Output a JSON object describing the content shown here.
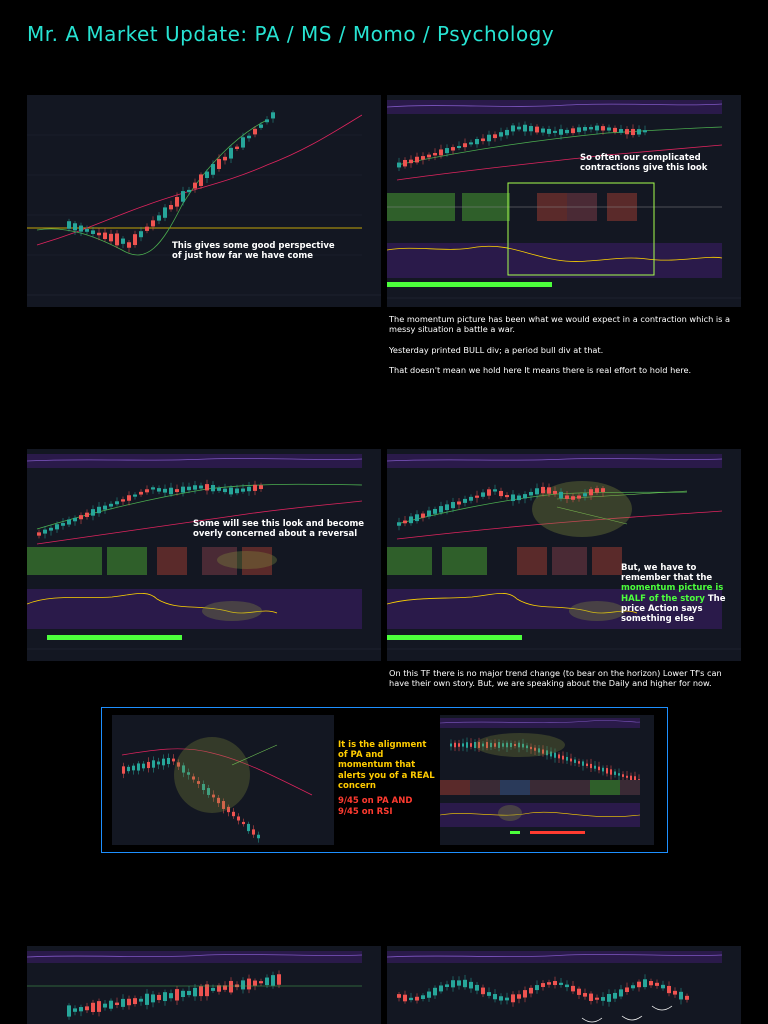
{
  "header": {
    "title": "Mr. A Market Update: PA / MS / Momo / Psychology"
  },
  "chart1": {
    "annotation": "This gives some good perspective of just how far we have come"
  },
  "chart2": {
    "annotation": "So often our complicated contractions give this look"
  },
  "paragraph1": {
    "line1": "The momentum picture has been what we would expect in a contraction which is a messy situation a battle a war.",
    "line2": "Yesterday printed BULL div; a period bull div at that.",
    "line3": "That doesn't mean we hold here It means there is real effort to hold here."
  },
  "chart3": {
    "annotation": "Some will see this look and become overly concerned about a reversal"
  },
  "chart4": {
    "annotation_part1": "But, we have to remember that the",
    "annotation_highlight": "momentum picture is HALF of the story",
    "annotation_part2": "The price Action says something else"
  },
  "paragraph2": {
    "text": "On this TF there is no major trend change (to bear on the horizon) Lower Tf's can have their own story. But, we are speaking about the Daily and higher for now."
  },
  "box": {
    "yellow_text": "It is the alignment of PA and momentum that alerts you of a REAL concern",
    "red_line1": "9/45 on PA AND",
    "red_line2": "9/45 on RSI"
  },
  "colors": {
    "title": "#27e3d2",
    "bull_candle": "#26a69a",
    "bear_candle": "#ef5350",
    "highlight_green": "#4cff3c",
    "box_border": "#1e90ff"
  }
}
